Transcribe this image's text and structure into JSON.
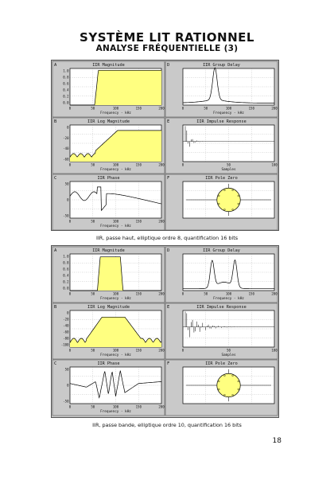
{
  "page": {
    "title": "SYSTÈME LIT RATIONNEL",
    "subtitle": "ANALYSE FRÉQUENTIELLE (3)",
    "page_number": "18"
  },
  "figures": [
    {
      "caption": "IIR, passe haut, elliptique ordre 8, quantification 16 bits",
      "panels": {
        "magnitude": {
          "letter": "A",
          "title": "IIR Magnitude",
          "xlabel": "Frequency - kHz",
          "xticks": [
            "0",
            "50",
            "100",
            "150",
            "200"
          ],
          "yticks": [
            "1.0",
            "0.8",
            "0.6",
            "0.4",
            "0.2",
            "0.0"
          ]
        },
        "group_delay": {
          "letter": "D",
          "title": "IIR Group Delay",
          "xlabel": "Frequency - kHz",
          "xticks": [
            "0",
            "50",
            "100",
            "150",
            "200"
          ]
        },
        "log_magnitude": {
          "letter": "B",
          "title": "IIR Log Magnitude",
          "xlabel": "Frequency - kHz",
          "xticks": [
            "0",
            "50",
            "100",
            "150",
            "200"
          ],
          "yticks": [
            "0",
            "-20",
            "-40",
            "-60"
          ]
        },
        "impulse": {
          "letter": "E",
          "title": "IIR Impulse Response",
          "xlabel": "Samples",
          "xticks": [
            "0",
            "50",
            "100"
          ]
        },
        "phase": {
          "letter": "C",
          "title": "IIR Phase",
          "xlabel": "Frequency - kHz",
          "xticks": [
            "0",
            "50",
            "100",
            "150",
            "200"
          ],
          "yticks": [
            "50",
            "0",
            "-50"
          ]
        },
        "pole_zero": {
          "letter": "F",
          "title": "IIR Pole Zero"
        }
      }
    },
    {
      "caption": "IIR, passe bande, elliptique ordre 10, quantification 16 bits",
      "panels": {
        "magnitude": {
          "letter": "A",
          "title": "IIR Magnitude",
          "xlabel": "Frequency - kHz",
          "xticks": [
            "0",
            "50",
            "100",
            "150",
            "200"
          ],
          "yticks": [
            "1.0",
            "0.8",
            "0.6",
            "0.4",
            "0.2",
            "0.0"
          ]
        },
        "group_delay": {
          "letter": "D",
          "title": "IIR Group Delay",
          "xlabel": "Frequency - kHz",
          "xticks": [
            "0",
            "50",
            "100",
            "150",
            "200"
          ]
        },
        "log_magnitude": {
          "letter": "B",
          "title": "IIR Log Magnitude",
          "xlabel": "Frequency - kHz",
          "xticks": [
            "0",
            "50",
            "100",
            "150",
            "200"
          ],
          "yticks": [
            "0",
            "-20",
            "-40",
            "-60",
            "-80",
            "-100"
          ]
        },
        "impulse": {
          "letter": "E",
          "title": "IIR Impulse Response",
          "xlabel": "Samples",
          "xticks": [
            "0",
            "50",
            "100"
          ]
        },
        "phase": {
          "letter": "C",
          "title": "IIR Phase",
          "xlabel": "Frequency - kHz",
          "xticks": [
            "0",
            "50",
            "100",
            "150",
            "200"
          ],
          "yticks": [
            "50",
            "0",
            "-50"
          ]
        },
        "pole_zero": {
          "letter": "F",
          "title": "IIR Pole Zero"
        }
      }
    }
  ],
  "colors": {
    "fill": "#ffff80",
    "panel_bg": "#c9c9c9",
    "plot_bg": "#ffffff",
    "curve": "#000000"
  }
}
